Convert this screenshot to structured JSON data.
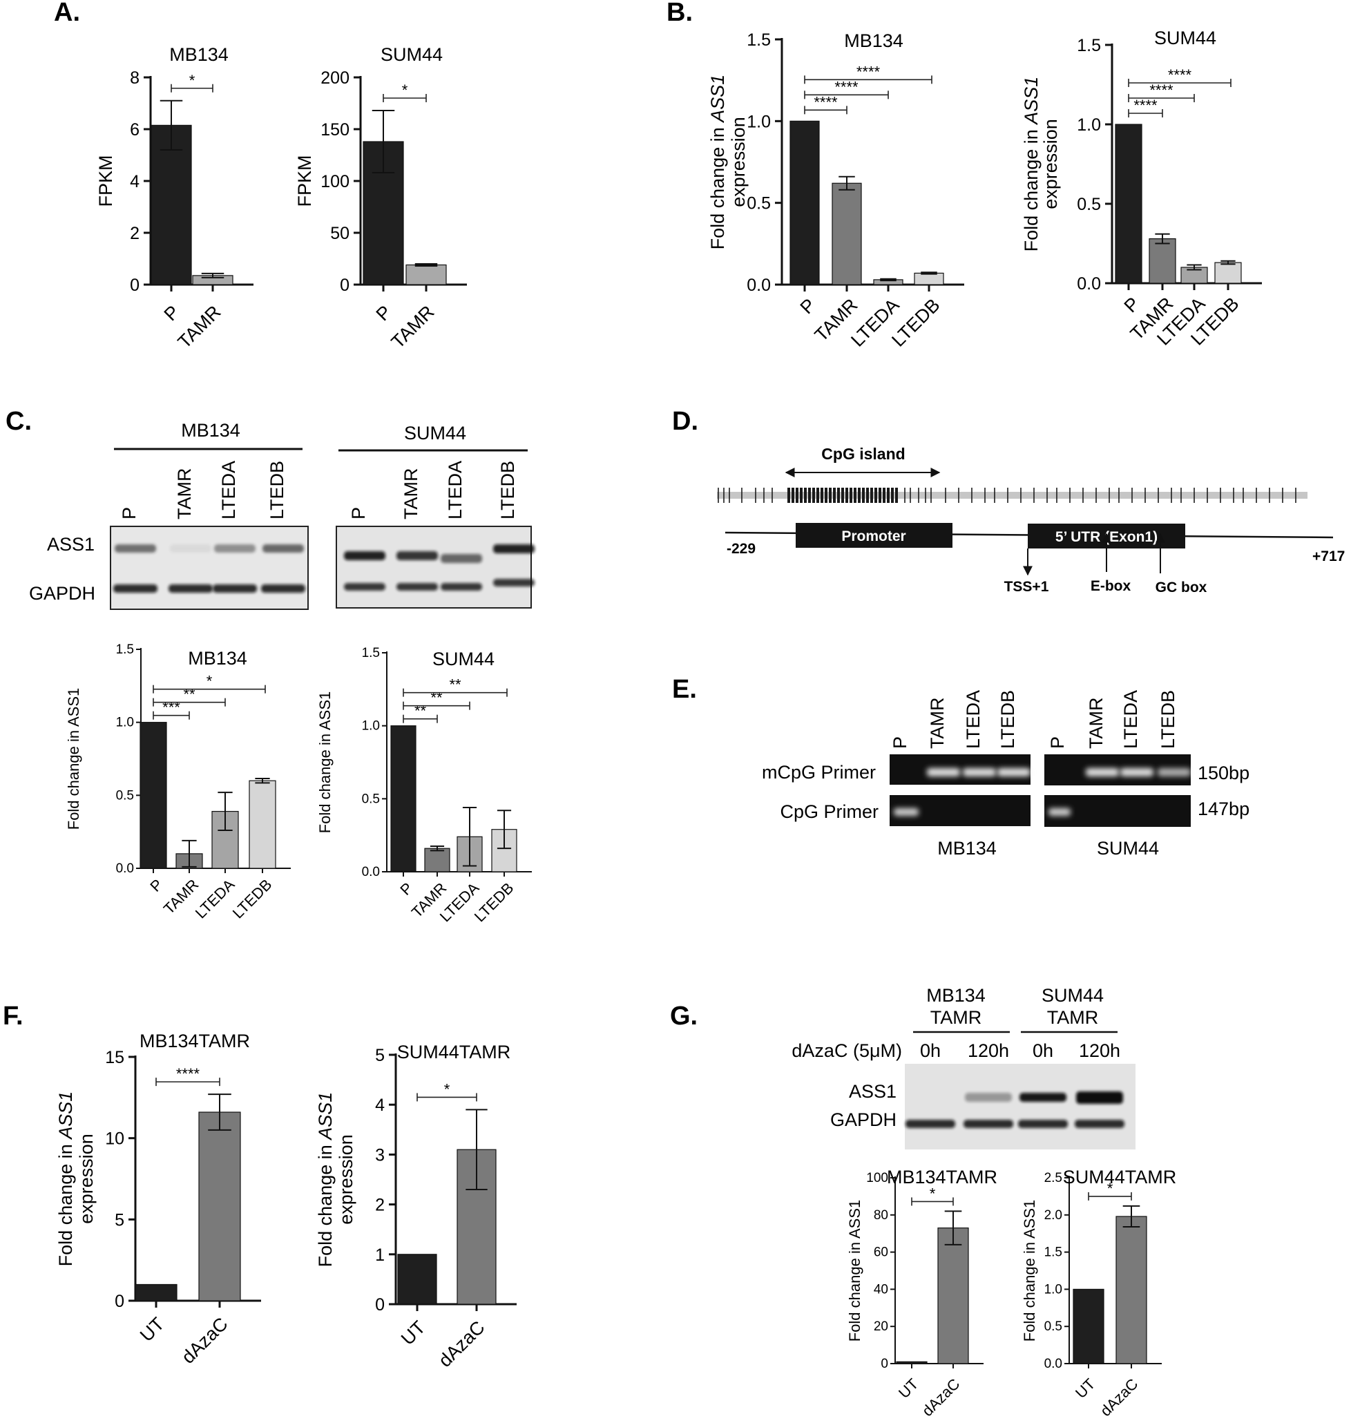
{
  "panels": {
    "A": "A.",
    "B": "B.",
    "C": "C.",
    "D": "D.",
    "E": "E.",
    "F": "F.",
    "G": "G."
  },
  "chart_data": [
    {
      "id": "A1",
      "type": "bar",
      "title": "MB134",
      "ylabel": "FPKM",
      "ylabel_italic": "",
      "categories": [
        "P",
        "TAMR"
      ],
      "values": [
        6.15,
        0.35
      ],
      "errors": [
        0.95,
        0.08
      ],
      "ylim": [
        0,
        8
      ],
      "yticks": [
        "0",
        "2",
        "4",
        "6",
        "8"
      ],
      "ytick_values": [
        0,
        2,
        4,
        6,
        8
      ],
      "colors": [
        "#1f1f1f",
        "#a9a9a9"
      ],
      "significance": [
        {
          "from": 0,
          "to": 1,
          "label": "*"
        }
      ]
    },
    {
      "id": "A2",
      "type": "bar",
      "title": "SUM44",
      "ylabel": "FPKM",
      "ylabel_italic": "",
      "categories": [
        "P",
        "TAMR"
      ],
      "values": [
        138,
        19
      ],
      "errors": [
        30,
        1
      ],
      "ylim": [
        0,
        200
      ],
      "yticks": [
        "0",
        "50",
        "100",
        "150",
        "200"
      ],
      "ytick_values": [
        0,
        50,
        100,
        150,
        200
      ],
      "colors": [
        "#1f1f1f",
        "#a9a9a9"
      ],
      "significance": [
        {
          "from": 0,
          "to": 1,
          "label": "*"
        }
      ]
    },
    {
      "id": "B1",
      "type": "bar",
      "title": "MB134",
      "ylabel": "Fold change in ",
      "ylabel_italic": "ASS1",
      "ylabel2": "expression",
      "categories": [
        "P",
        "TAMR",
        "LTEDA",
        "LTEDB"
      ],
      "values": [
        1.0,
        0.62,
        0.03,
        0.07
      ],
      "errors": [
        0,
        0.04,
        0.005,
        0.005
      ],
      "ylim": [
        0,
        1.5
      ],
      "yticks": [
        "0.0",
        "0.5",
        "1.0",
        "1.5"
      ],
      "ytick_values": [
        0,
        0.5,
        1.0,
        1.5
      ],
      "colors": [
        "#1f1f1f",
        "#7a7a7a",
        "#a5a5a5",
        "#d6d6d6"
      ],
      "significance": [
        {
          "from": 0,
          "to": 1,
          "label": "****"
        },
        {
          "from": 0,
          "to": 2,
          "label": "****"
        },
        {
          "from": 0,
          "to": 3,
          "label": "****"
        }
      ]
    },
    {
      "id": "B2",
      "type": "bar",
      "title": "SUM44",
      "ylabel": "Fold change in ",
      "ylabel_italic": "ASS1",
      "ylabel2": "expression",
      "categories": [
        "P",
        "TAMR",
        "LTEDA",
        "LTEDB"
      ],
      "values": [
        1.0,
        0.28,
        0.1,
        0.13
      ],
      "errors": [
        0,
        0.03,
        0.015,
        0.01
      ],
      "ylim": [
        0,
        1.5
      ],
      "yticks": [
        "0.0",
        "0.5",
        "1.0",
        "1.5"
      ],
      "ytick_values": [
        0,
        0.5,
        1.0,
        1.5
      ],
      "colors": [
        "#1f1f1f",
        "#7a7a7a",
        "#a5a5a5",
        "#d6d6d6"
      ],
      "significance": [
        {
          "from": 0,
          "to": 1,
          "label": "****"
        },
        {
          "from": 0,
          "to": 2,
          "label": "****"
        },
        {
          "from": 0,
          "to": 3,
          "label": "****"
        }
      ]
    },
    {
      "id": "C1",
      "type": "bar",
      "title": "MB134",
      "ylabel": "Fold change in ASS1",
      "ylabel_italic": "",
      "categories": [
        "P",
        "TAMR",
        "LTEDA",
        "LTEDB"
      ],
      "values": [
        1.0,
        0.1,
        0.39,
        0.6
      ],
      "errors": [
        0,
        0.09,
        0.13,
        0.015
      ],
      "ylim": [
        0,
        1.5
      ],
      "yticks": [
        "0.0",
        "0.5",
        "1.0",
        "1.5"
      ],
      "ytick_values": [
        0,
        0.5,
        1.0,
        1.5
      ],
      "colors": [
        "#1f1f1f",
        "#7a7a7a",
        "#a5a5a5",
        "#d6d6d6"
      ],
      "significance": [
        {
          "from": 0,
          "to": 1,
          "label": "***"
        },
        {
          "from": 0,
          "to": 2,
          "label": "**"
        },
        {
          "from": 0,
          "to": 3,
          "label": "*"
        }
      ]
    },
    {
      "id": "C2",
      "type": "bar",
      "title": "SUM44",
      "ylabel": "Fold change in ASS1",
      "ylabel_italic": "",
      "categories": [
        "P",
        "TAMR",
        "LTEDA",
        "LTEDB"
      ],
      "values": [
        1.0,
        0.16,
        0.24,
        0.29
      ],
      "errors": [
        0,
        0.015,
        0.2,
        0.13
      ],
      "ylim": [
        0,
        1.5
      ],
      "yticks": [
        "0.0",
        "0.5",
        "1.0",
        "1.5"
      ],
      "ytick_values": [
        0,
        0.5,
        1.0,
        1.5
      ],
      "colors": [
        "#1f1f1f",
        "#7a7a7a",
        "#a5a5a5",
        "#d6d6d6"
      ],
      "significance": [
        {
          "from": 0,
          "to": 1,
          "label": "**"
        },
        {
          "from": 0,
          "to": 2,
          "label": "**"
        },
        {
          "from": 0,
          "to": 3,
          "label": "**"
        }
      ]
    },
    {
      "id": "F1",
      "type": "bar",
      "title": "MB134TAMR",
      "ylabel": "Fold change in ",
      "ylabel_italic": "ASS1",
      "ylabel2": "expression",
      "categories": [
        "UT",
        "dAzaC"
      ],
      "values": [
        1.0,
        11.6
      ],
      "errors": [
        0,
        1.1
      ],
      "ylim": [
        0,
        15
      ],
      "yticks": [
        "0",
        "5",
        "10",
        "15"
      ],
      "ytick_values": [
        0,
        5,
        10,
        15
      ],
      "colors": [
        "#1f1f1f",
        "#7a7a7a"
      ],
      "significance": [
        {
          "from": 0,
          "to": 1,
          "label": "****"
        }
      ]
    },
    {
      "id": "F2",
      "type": "bar",
      "title": "SUM44TAMR",
      "ylabel": "Fold change in ",
      "ylabel_italic": "ASS1",
      "ylabel2": "expression",
      "categories": [
        "UT",
        "dAzaC"
      ],
      "values": [
        1.0,
        3.1
      ],
      "errors": [
        0,
        0.8
      ],
      "ylim": [
        0,
        5
      ],
      "yticks": [
        "0",
        "1",
        "2",
        "3",
        "4",
        "5"
      ],
      "ytick_values": [
        0,
        1,
        2,
        3,
        4,
        5
      ],
      "colors": [
        "#1f1f1f",
        "#7a7a7a"
      ],
      "significance": [
        {
          "from": 0,
          "to": 1,
          "label": "*"
        }
      ]
    },
    {
      "id": "G1",
      "type": "bar",
      "title": "MB134TAMR",
      "ylabel": "Fold change in ASS1",
      "ylabel_italic": "",
      "categories": [
        "UT",
        "dAzaC"
      ],
      "values": [
        1.0,
        73
      ],
      "errors": [
        0,
        9
      ],
      "ylim": [
        0,
        100
      ],
      "yticks": [
        "0",
        "20",
        "40",
        "60",
        "80",
        "100"
      ],
      "ytick_values": [
        0,
        20,
        40,
        60,
        80,
        100
      ],
      "colors": [
        "#1f1f1f",
        "#7a7a7a"
      ],
      "significance": [
        {
          "from": 0,
          "to": 1,
          "label": "*"
        }
      ]
    },
    {
      "id": "G2",
      "type": "bar",
      "title": "SUM44TAMR",
      "ylabel": "Fold change in ASS1",
      "ylabel_italic": "",
      "categories": [
        "UT",
        "dAzaC"
      ],
      "values": [
        1.0,
        1.98
      ],
      "errors": [
        0,
        0.14
      ],
      "ylim": [
        0,
        2.5
      ],
      "yticks": [
        "0.0",
        "0.5",
        "1.0",
        "1.5",
        "2.0",
        "2.5"
      ],
      "ytick_values": [
        0,
        0.5,
        1.0,
        1.5,
        2.0,
        2.5
      ],
      "colors": [
        "#1f1f1f",
        "#7a7a7a"
      ],
      "significance": [
        {
          "from": 0,
          "to": 1,
          "label": "*"
        }
      ]
    }
  ],
  "blot_C": {
    "left_group": "MB134",
    "right_group": "SUM44",
    "lanes": [
      "P",
      "TAMR",
      "LTEDA",
      "LTEDB"
    ],
    "rows": [
      "ASS1",
      "GAPDH"
    ],
    "ass1_left": [
      0.75,
      0.08,
      0.55,
      0.8
    ],
    "ass1_right": [
      1.0,
      0.9,
      0.65,
      1.0
    ]
  },
  "diagram_D": {
    "cpg_island": "CpG island",
    "promoter": "Promoter",
    "utr": "5’ UTR (Exon1)",
    "start": "-229",
    "end": "+717",
    "tss": "TSS+1",
    "ebox": "E-box",
    "gcbox": "GC box"
  },
  "gel_E": {
    "lanes": [
      "P",
      "TAMR",
      "LTEDA",
      "LTEDB"
    ],
    "rows": [
      "mCpG Primer",
      "CpG Primer"
    ],
    "sizes": [
      "150bp",
      "147bp"
    ],
    "groups": [
      "MB134",
      "SUM44"
    ]
  },
  "blot_G": {
    "group1": "MB134",
    "group1b": "TAMR",
    "group2": "SUM44",
    "group2b": "TAMR",
    "treatment": "dAzaC (5μM)",
    "times": [
      "0h",
      "120h",
      "0h",
      "120h"
    ],
    "rows": [
      "ASS1",
      "GAPDH"
    ]
  },
  "colors": {
    "bar_dark": "#1f1f1f",
    "bar_mid": "#7a7a7a",
    "bar_light": "#a9a9a9"
  }
}
